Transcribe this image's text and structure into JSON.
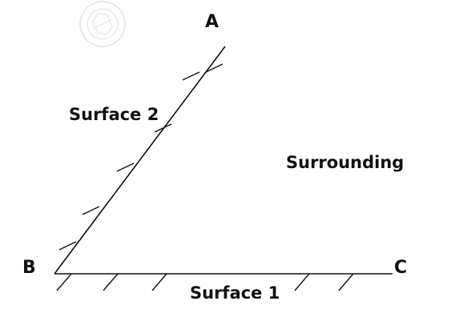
{
  "diagram": {
    "points": {
      "a": "A",
      "b": "B",
      "c": "C"
    },
    "labels": {
      "surface_2": "Surface 2",
      "surface_1": "Surface 1",
      "surrounding": "Surrounding"
    },
    "colors": {
      "line": "#111111",
      "watermark": "#cfcfcf",
      "background": "#ffffff"
    },
    "watermark_icon": "seal-icon"
  }
}
